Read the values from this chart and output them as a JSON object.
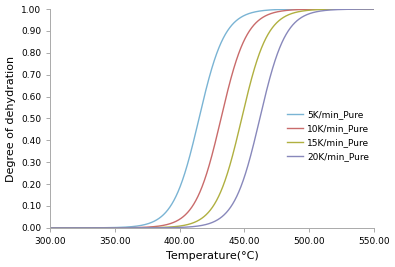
{
  "title": "",
  "xlabel": "Temperature(°C)",
  "ylabel": "Degree of dehydration",
  "xlim": [
    300,
    550
  ],
  "ylim": [
    0.0,
    1.0
  ],
  "xticks": [
    300.0,
    350.0,
    400.0,
    450.0,
    500.0,
    550.0
  ],
  "yticks": [
    0.0,
    0.1,
    0.2,
    0.3,
    0.4,
    0.5,
    0.6,
    0.7,
    0.8,
    0.9,
    1.0
  ],
  "series": [
    {
      "label": "5K/min_Pure",
      "color": "#7ab4d4",
      "midpoint": 415,
      "steepness": 0.1
    },
    {
      "label": "10K/min_Pure",
      "color": "#c96b6b",
      "midpoint": 432,
      "steepness": 0.1
    },
    {
      "label": "15K/min_Pure",
      "color": "#b0b040",
      "midpoint": 448,
      "steepness": 0.1
    },
    {
      "label": "20K/min_Pure",
      "color": "#8888bb",
      "midpoint": 462,
      "steepness": 0.1
    }
  ],
  "background_color": "#ffffff",
  "legend_fontsize": 6.5,
  "axis_fontsize": 8,
  "tick_fontsize": 6.5
}
